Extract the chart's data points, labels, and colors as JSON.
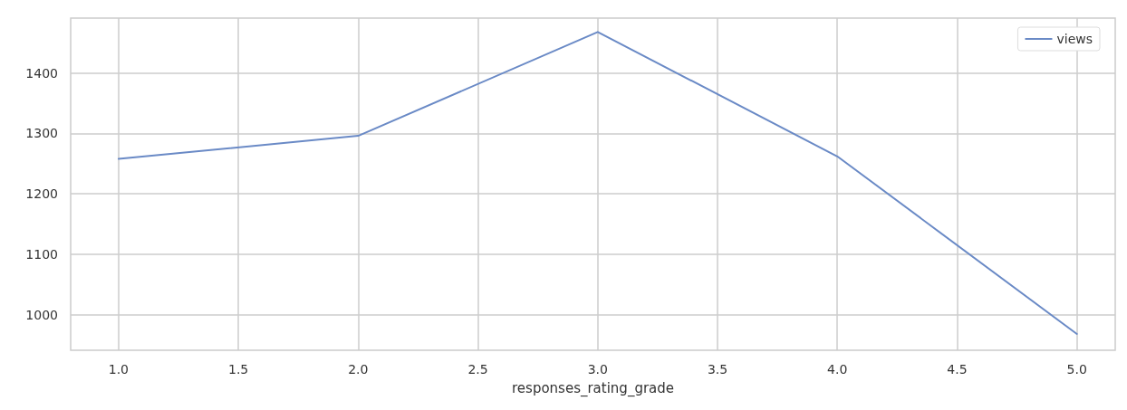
{
  "chart_data": {
    "type": "line",
    "xlabel": "responses_rating_grade",
    "x": [
      1,
      2,
      3,
      4,
      5
    ],
    "series": [
      {
        "name": "views",
        "color": "#6a8ac6",
        "values": [
          1258,
          1296,
          1468,
          1262,
          968
        ]
      }
    ],
    "xlim": [
      0.8,
      5.16
    ],
    "ylim": [
      941,
      1491
    ],
    "xticks": [
      {
        "value": 1,
        "label": "1.0"
      },
      {
        "value": 1.5,
        "label": "1.5"
      },
      {
        "value": 2,
        "label": "2.0"
      },
      {
        "value": 2.5,
        "label": "2.5"
      },
      {
        "value": 3,
        "label": "3.0"
      },
      {
        "value": 3.5,
        "label": "3.5"
      },
      {
        "value": 4,
        "label": "4.0"
      },
      {
        "value": 4.5,
        "label": "4.5"
      },
      {
        "value": 5,
        "label": "5.0"
      }
    ],
    "yticks": [
      1000,
      1100,
      1200,
      1300,
      1400
    ],
    "grid": true,
    "legend": "top right",
    "marker": "none",
    "line_style": "solid"
  }
}
